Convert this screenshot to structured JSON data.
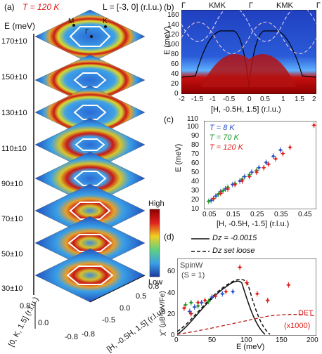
{
  "panel_a": {
    "label": "(a)",
    "temperature": "T = 120 K",
    "l_range": "L = [-3, 0] (r.l.u.)",
    "energy_axis_label": "E (meV)",
    "energy_slices": [
      "170±10",
      "150±10",
      "130±10",
      "110±10",
      "90±10",
      "70±10",
      "50±10",
      "30±10"
    ],
    "points": {
      "M": "M",
      "K": "K",
      "Gamma": "Γ"
    },
    "colorbar_high": "High",
    "colorbar_low": "Low",
    "axis_k_label": "[0, K, 1.5] (r.l.u.)",
    "axis_k_ticks": [
      "0.8",
      "0.0",
      "-0.8"
    ],
    "axis_h_label": "[H, -0.5H, 1.5] (r.l.u.)",
    "axis_h_ticks": [
      "-0.8",
      "-0.5",
      "0.0",
      "0.5",
      "0.8"
    ]
  },
  "panel_b": {
    "label": "(b)",
    "top_labels": [
      "Γ",
      "K",
      "M",
      "K",
      "Γ",
      "K",
      "M",
      "K",
      "Γ"
    ],
    "ylabel": "E (meV)",
    "xlabel": "[H, -0.5H, 1.5] (r.l.u.)",
    "y_ticks": [
      "0",
      "20",
      "40",
      "60",
      "80",
      "100",
      "120",
      "140",
      "160"
    ],
    "x_ticks": [
      "-2",
      "-1.5",
      "-1",
      "-0.5",
      "0",
      "0.5",
      "1",
      "1.5",
      "2"
    ]
  },
  "panel_c": {
    "label": "(c)",
    "legend": [
      {
        "text": "T = 8 K",
        "color": "#2b50c8"
      },
      {
        "text": "T = 70 K",
        "color": "#1f9a2a"
      },
      {
        "text": "T = 120 K",
        "color": "#e0201b"
      }
    ],
    "ylabel": "E (meV)",
    "xlabel": "[H, -0.5H, -1.5] (r.l.u.)",
    "y_ticks": [
      "10",
      "20",
      "30",
      "40",
      "50",
      "60",
      "70",
      "80",
      "90",
      "100",
      "110"
    ],
    "x_ticks": [
      "0.05",
      "0.15",
      "0.25",
      "0.35",
      "0.45"
    ]
  },
  "panel_d": {
    "label": "(d)",
    "legend": [
      {
        "text": "Dz = -0.0015",
        "style": "solid"
      },
      {
        "text": "Dz set loose",
        "style": "dashed"
      }
    ],
    "spinw_label_1": "SpinW",
    "spinw_label_2": "(S = 1)",
    "dft_label": "DFT",
    "dft_factor": "(x1000)",
    "ylabel": "χ'' (μB²/eV/Fe)",
    "xlabel": "E (meV)",
    "y_ticks": [
      "0",
      "20",
      "40",
      "60"
    ],
    "x_ticks": [
      "0",
      "50",
      "100",
      "150",
      "200"
    ]
  },
  "chart_data": [
    {
      "type": "scatter",
      "panel": "c",
      "xlabel": "[H, -0.5H, -1.5] (r.l.u.)",
      "ylabel": "E (meV)",
      "xlim": [
        0.03,
        0.5
      ],
      "ylim": [
        10,
        110
      ],
      "series": [
        {
          "name": "T = 8 K",
          "color": "#2b50c8",
          "x": [
            0.06,
            0.08,
            0.1,
            0.12,
            0.15,
            0.18,
            0.2,
            0.23,
            0.26,
            0.29,
            0.32,
            0.35
          ],
          "y": [
            20,
            25,
            30,
            33,
            38,
            42,
            47,
            52,
            57,
            63,
            70,
            77
          ]
        },
        {
          "name": "T = 70 K",
          "color": "#1f9a2a",
          "x": [
            0.05,
            0.07,
            0.09,
            0.11,
            0.13,
            0.16,
            0.19,
            0.22,
            0.25
          ],
          "y": [
            19,
            22,
            27,
            31,
            35,
            39,
            44,
            49,
            54
          ]
        },
        {
          "name": "T = 120 K",
          "color": "#e0201b",
          "x": [
            0.07,
            0.1,
            0.13,
            0.16,
            0.19,
            0.22,
            0.25,
            0.28,
            0.3,
            0.33,
            0.36,
            0.39,
            0.49
          ],
          "y": [
            22,
            28,
            33,
            38,
            42,
            47,
            52,
            57,
            61,
            67,
            73,
            80,
            105
          ]
        }
      ]
    },
    {
      "type": "scatter",
      "panel": "d",
      "xlabel": "E (meV)",
      "ylabel": "χ'' (μB²/eV/Fe)",
      "xlim": [
        0,
        200
      ],
      "ylim": [
        0,
        70
      ],
      "series": [
        {
          "name": "T = 8 K",
          "color": "#2b50c8",
          "x": [
            18,
            25,
            35,
            50,
            65,
            80
          ],
          "y": [
            22,
            26,
            30,
            35,
            38,
            40
          ]
        },
        {
          "name": "T = 70 K",
          "color": "#1f9a2a",
          "x": [
            12,
            20,
            30,
            45
          ],
          "y": [
            28,
            30,
            27,
            31
          ]
        },
        {
          "name": "T = 120 K",
          "color": "#e0201b",
          "x": [
            10,
            20,
            30,
            40,
            55,
            70,
            90,
            100,
            115,
            130,
            160
          ],
          "y": [
            25,
            20,
            30,
            32,
            36,
            40,
            62,
            48,
            38,
            32,
            46
          ]
        }
      ]
    }
  ]
}
